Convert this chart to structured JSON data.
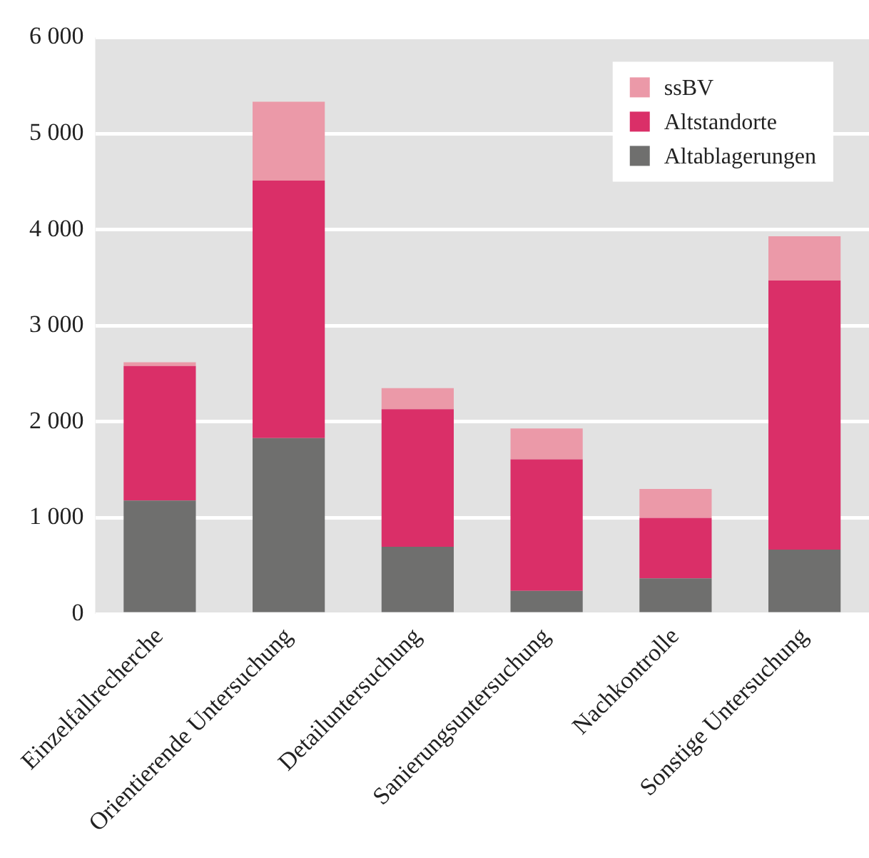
{
  "chart_data": {
    "type": "bar",
    "stacked": true,
    "categories": [
      "Einzelfallrecherche",
      "Orientierende Untersuchung",
      "Detailuntersuchung",
      "Sanierungsuntersuchung",
      "Nachkontrolle",
      "Sonstige Untersuchung"
    ],
    "series": [
      {
        "name": "Altablagerungen",
        "color": "#6f6f6e",
        "values": [
          1180,
          1830,
          700,
          240,
          370,
          670
        ]
      },
      {
        "name": "Altstandorte",
        "color": "#da2f68",
        "values": [
          1400,
          2680,
          1430,
          1370,
          630,
          2800
        ]
      },
      {
        "name": "ssBV",
        "color": "#eb99a8",
        "values": [
          40,
          820,
          220,
          320,
          300,
          460
        ]
      }
    ],
    "ylim": [
      0,
      6000
    ],
    "yticks": [
      {
        "value": 0,
        "label": "0"
      },
      {
        "value": 1000,
        "label": "1 000"
      },
      {
        "value": 2000,
        "label": "2 000"
      },
      {
        "value": 3000,
        "label": "3 000"
      },
      {
        "value": 4000,
        "label": "4 000"
      },
      {
        "value": 5000,
        "label": "5 000"
      },
      {
        "value": 6000,
        "label": "6 000"
      }
    ],
    "grid": "y",
    "legend": "top right"
  }
}
